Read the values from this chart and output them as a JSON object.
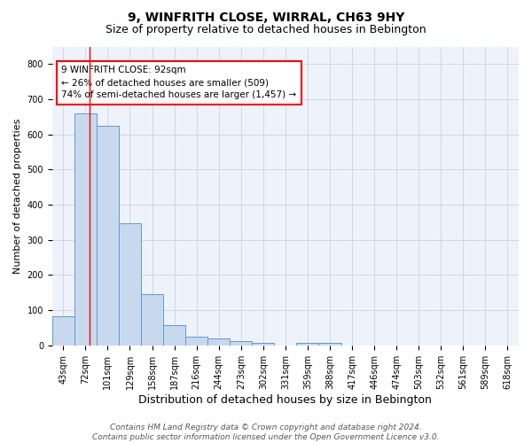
{
  "title": "9, WINFRITH CLOSE, WIRRAL, CH63 9HY",
  "subtitle": "Size of property relative to detached houses in Bebington",
  "xlabel": "Distribution of detached houses by size in Bebington",
  "ylabel": "Number of detached properties",
  "categories": [
    "43sqm",
    "72sqm",
    "101sqm",
    "129sqm",
    "158sqm",
    "187sqm",
    "216sqm",
    "244sqm",
    "273sqm",
    "302sqm",
    "331sqm",
    "359sqm",
    "388sqm",
    "417sqm",
    "446sqm",
    "474sqm",
    "503sqm",
    "532sqm",
    "561sqm",
    "589sqm",
    "618sqm"
  ],
  "values": [
    82,
    660,
    625,
    348,
    147,
    58,
    25,
    20,
    12,
    8,
    0,
    8,
    8,
    0,
    0,
    0,
    0,
    0,
    0,
    0,
    0
  ],
  "bar_color": "#c9d9ed",
  "bar_edge_color": "#5b9bd5",
  "annotation_line1": "9 WINFRITH CLOSE: 92sqm",
  "annotation_line2": "← 26% of detached houses are smaller (509)",
  "annotation_line3": "74% of semi-detached houses are larger (1,457) →",
  "ylim": [
    0,
    850
  ],
  "yticks": [
    0,
    100,
    200,
    300,
    400,
    500,
    600,
    700,
    800
  ],
  "grid_color": "#c8d4e8",
  "background_color": "#eef2fa",
  "footer": "Contains HM Land Registry data © Crown copyright and database right 2024.\nContains public sector information licensed under the Open Government Licence v3.0.",
  "title_fontsize": 10,
  "subtitle_fontsize": 9,
  "xlabel_fontsize": 9,
  "ylabel_fontsize": 8,
  "tick_fontsize": 7,
  "annotation_fontsize": 7.5,
  "footer_fontsize": 6.5
}
